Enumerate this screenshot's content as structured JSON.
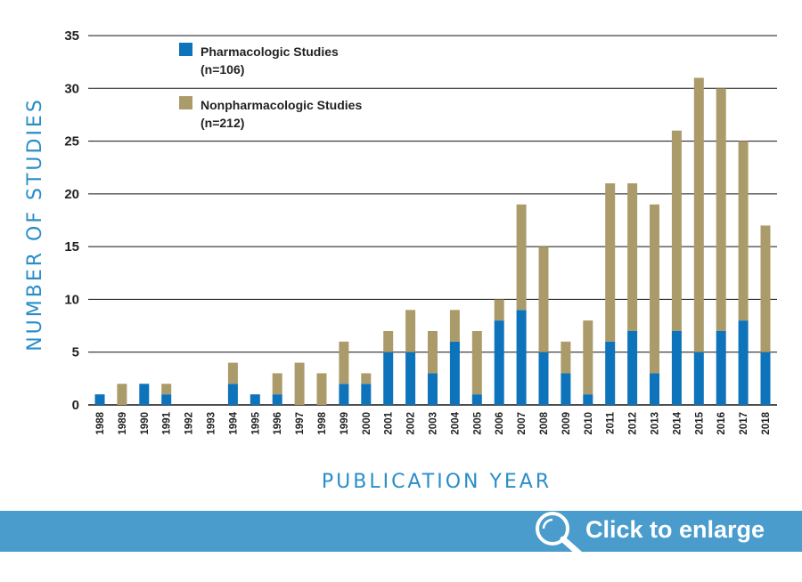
{
  "chart_data": {
    "type": "bar",
    "stacked": true,
    "categories": [
      "1988",
      "1989",
      "1990",
      "1991",
      "1992",
      "1993",
      "1994",
      "1995",
      "1996",
      "1997",
      "1998",
      "1999",
      "2000",
      "2001",
      "2002",
      "2003",
      "2004",
      "2005",
      "2006",
      "2007",
      "2008",
      "2009",
      "2010",
      "2011",
      "2012",
      "2013",
      "2014",
      "2015",
      "2016",
      "2017",
      "2018"
    ],
    "series": [
      {
        "name": "Pharmacologic Studies",
        "count_label": "(n=106)",
        "color": "#0d73bb",
        "values": [
          1,
          0,
          2,
          1,
          0,
          0,
          2,
          1,
          1,
          0,
          0,
          2,
          2,
          5,
          5,
          3,
          6,
          1,
          8,
          9,
          5,
          3,
          1,
          6,
          7,
          3,
          7,
          5,
          7,
          8,
          5
        ]
      },
      {
        "name": "Nonpharmacologic Studies",
        "count_label": "(n=212)",
        "color": "#ac9b6a",
        "values": [
          0,
          2,
          0,
          1,
          0,
          0,
          2,
          0,
          2,
          4,
          3,
          4,
          1,
          2,
          4,
          4,
          3,
          6,
          2,
          10,
          10,
          3,
          7,
          15,
          14,
          16,
          19,
          26,
          23,
          17,
          12
        ]
      }
    ],
    "xlabel": "PUBLICATION YEAR",
    "ylabel": "NUMBER OF STUDIES",
    "ylim": [
      0,
      35
    ],
    "yticks": [
      0,
      5,
      10,
      15,
      20,
      25,
      30,
      35
    ],
    "grid": true,
    "legend_position": "top-left",
    "axis_title_color": "#2a8ec8"
  },
  "footer": {
    "label": "Click to enlarge",
    "icon": "magnifier-icon",
    "background": "#4a9ccd"
  }
}
